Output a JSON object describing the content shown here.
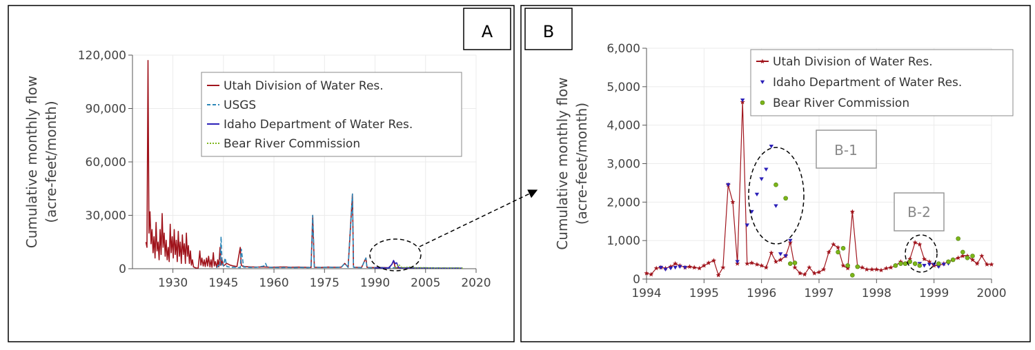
{
  "panels": {
    "a": {
      "label": "A"
    },
    "b": {
      "label": "B"
    }
  },
  "annotations": {
    "b1": "B-1",
    "b2": "B-2"
  },
  "colors": {
    "utah": "#a0141c",
    "usgs": "#2a86b8",
    "idaho": "#2a1fb8",
    "brc": "#7cb518",
    "grid": "#ebebeb",
    "axis": "#555555"
  },
  "chart_data": [
    {
      "panel": "A",
      "type": "line",
      "ylabel": [
        "Cumulative monthly flow",
        "(acre-feet/month)"
      ],
      "xlabel": "",
      "xlim": [
        1918,
        2020
      ],
      "ylim": [
        0,
        120000
      ],
      "xticks": [
        1930,
        1945,
        1960,
        1975,
        1990,
        2005,
        2020
      ],
      "xticklabels": [
        "1930",
        "1945",
        "1960",
        "1975",
        "1990",
        "2005",
        "2020"
      ],
      "yticks": [
        0,
        30000,
        60000,
        90000,
        120000
      ],
      "yticklabels": [
        "0",
        "30,000",
        "60,000",
        "90,000",
        "120,000"
      ],
      "grid": true,
      "legend": "top-right",
      "series": [
        {
          "name": "Utah Division of Water Res.",
          "key": "utah",
          "style": "solid",
          "x": [
            1922.0,
            1922.3,
            1922.6,
            1922.9,
            1923.2,
            1923.5,
            1923.8,
            1924.1,
            1924.4,
            1924.7,
            1925.0,
            1925.3,
            1925.6,
            1925.9,
            1926.2,
            1926.5,
            1926.8,
            1927.1,
            1927.4,
            1927.7,
            1928.0,
            1928.3,
            1928.6,
            1928.9,
            1929.2,
            1929.5,
            1929.8,
            1930.1,
            1930.4,
            1930.7,
            1931.0,
            1931.3,
            1931.6,
            1931.9,
            1932.2,
            1932.5,
            1932.8,
            1933.1,
            1933.4,
            1933.7,
            1934.0,
            1934.3,
            1934.6,
            1934.9,
            1935.2,
            1935.5,
            1935.8,
            1936.1,
            1936.4,
            1936.7,
            1937.0,
            1937.5,
            1938.0,
            1938.3,
            1938.6,
            1939.0,
            1939.3,
            1939.6,
            1940.0,
            1940.3,
            1940.6,
            1941.0,
            1941.3,
            1941.6,
            1942.0,
            1942.3,
            1942.6,
            1943.0,
            1943.3,
            1943.6,
            1944.0,
            1944.3,
            1944.6,
            1945.0,
            1946.0,
            1947.0,
            1948.0,
            1949.0,
            1950.0,
            1950.3,
            1950.6,
            1951.0,
            1953.0,
            1955.0,
            1957.0,
            1959.0,
            1961.0,
            1963.0,
            1965.0,
            1967.0,
            1969.0,
            1971.0,
            1971.5,
            1972.0,
            1974.0,
            1976.0,
            1978.0,
            1980.0,
            1981.0,
            1982.0,
            1983.3,
            1983.6,
            1984.0,
            1986.0,
            1987.3,
            1987.6,
            1988.0,
            1990.0,
            1992.0,
            1994.0,
            1995.0,
            1995.5,
            1996.0,
            1997.0,
            1998.0,
            1999.0,
            2000.0
          ],
          "y": [
            15000,
            12000,
            117000,
            20000,
            32000,
            14000,
            22000,
            9000,
            18000,
            6000,
            26000,
            10000,
            15000,
            5000,
            22000,
            8000,
            31000,
            12000,
            20000,
            7000,
            16000,
            5000,
            12000,
            4000,
            25000,
            9000,
            18000,
            6000,
            22000,
            8000,
            16000,
            4000,
            21000,
            7000,
            15000,
            3000,
            19000,
            8000,
            14000,
            3000,
            20000,
            7000,
            13000,
            3000,
            10000,
            2000,
            5000,
            1000,
            800,
            500,
            400,
            300,
            10000,
            2000,
            6000,
            1500,
            5000,
            1200,
            6000,
            1500,
            7000,
            1000,
            5000,
            800,
            9000,
            1500,
            4000,
            700,
            5000,
            1000,
            12000,
            2000,
            5000,
            1500,
            3000,
            2000,
            1500,
            1200,
            12000,
            2000,
            1500,
            1200,
            1000,
            900,
            1000,
            800,
            900,
            1000,
            800,
            900,
            800,
            700,
            30000,
            800,
            700,
            900,
            800,
            900,
            3000,
            800,
            42000,
            900,
            800,
            700,
            6000,
            800,
            700,
            600,
            700,
            500,
            2400,
            4600,
            500,
            600,
            500,
            500,
            400
          ]
        },
        {
          "name": "USGS",
          "key": "usgs",
          "style": "dash",
          "x": [
            1943.0,
            1943.5,
            1944.0,
            1944.3,
            1944.6,
            1945.0,
            1945.5,
            1946.0,
            1947.0,
            1948.0,
            1949.0,
            1950.0,
            1950.3,
            1951.0,
            1953.0,
            1955.0,
            1957.0,
            1957.5,
            1958.0,
            1960.0,
            1962.0,
            1964.0,
            1966.0,
            1968.0,
            1970.0,
            1971.0,
            1971.5,
            1972.0,
            1974.0,
            1976.0,
            1978.0,
            1980.0,
            1981.0,
            1982.0,
            1983.3,
            1983.6,
            1984.0,
            1986.0,
            1987.3,
            1987.6,
            1988.0,
            1990.0,
            1992.0,
            1994.0,
            1996.0,
            1998.0,
            2000.0,
            2005.0,
            2010.0,
            2016.0
          ],
          "y": [
            500,
            2000,
            1200,
            18000,
            3000,
            1500,
            6000,
            1200,
            900,
            800,
            700,
            600,
            11000,
            900,
            700,
            800,
            1500,
            3000,
            800,
            700,
            600,
            700,
            600,
            700,
            600,
            700,
            30000,
            800,
            700,
            800,
            700,
            800,
            3000,
            700,
            42000,
            800,
            700,
            600,
            6000,
            700,
            600,
            500,
            600,
            500,
            600,
            500,
            500,
            500,
            400,
            400
          ]
        },
        {
          "name": "Idaho Department of Water Res.",
          "key": "idaho",
          "style": "solid",
          "x": [
            1990.0,
            1992.0,
            1994.0,
            1995.0,
            1995.5,
            1996.0,
            1996.4,
            1997.0,
            1998.0,
            1999.0,
            2000.0,
            2005.0,
            2010.0,
            2016.0
          ],
          "y": [
            500,
            400,
            300,
            2400,
            4600,
            2800,
            3400,
            600,
            400,
            400,
            500,
            400,
            300,
            300
          ]
        },
        {
          "name": "Bear River Commission",
          "key": "brc",
          "style": "dot",
          "x": [
            1996.0,
            1997.0,
            1998.0,
            1999.0,
            2000.0,
            2002.0,
            2004.0,
            2006.0,
            2008.0,
            2010.0,
            2012.0,
            2014.0,
            2016.0
          ],
          "y": [
            400,
            2400,
            600,
            700,
            1000,
            500,
            600,
            500,
            400,
            500,
            400,
            500,
            300
          ]
        }
      ]
    },
    {
      "panel": "B",
      "type": "scatter",
      "ylabel": [
        "Cumulative monthly flow",
        "(acre-feet/month)"
      ],
      "xlabel": "",
      "xlim": [
        1994,
        2000
      ],
      "ylim": [
        0,
        6000
      ],
      "xticks": [
        1994,
        1995,
        1996,
        1997,
        1998,
        1999,
        2000
      ],
      "xticklabels": [
        "1994",
        "1995",
        "1996",
        "1997",
        "1998",
        "1999",
        "2000"
      ],
      "yticks": [
        0,
        1000,
        2000,
        3000,
        4000,
        5000,
        6000
      ],
      "yticklabels": [
        "0",
        "1,000",
        "2,000",
        "3,000",
        "4,000",
        "5,000",
        "6,000"
      ],
      "grid": true,
      "legend": "top-right",
      "series": [
        {
          "name": "Utah Division of Water Res.",
          "key": "utah",
          "marker": "star",
          "line": true,
          "x": [
            1994.0,
            1994.08,
            1994.17,
            1994.25,
            1994.33,
            1994.42,
            1994.5,
            1994.58,
            1994.67,
            1994.75,
            1994.83,
            1994.92,
            1995.0,
            1995.08,
            1995.17,
            1995.25,
            1995.33,
            1995.42,
            1995.5,
            1995.58,
            1995.67,
            1995.75,
            1995.83,
            1995.92,
            1996.0,
            1996.08,
            1996.17,
            1996.25,
            1996.33,
            1996.42,
            1996.5,
            1996.58,
            1996.67,
            1996.75,
            1996.83,
            1996.92,
            1997.0,
            1997.08,
            1997.17,
            1997.25,
            1997.33,
            1997.42,
            1997.5,
            1997.58,
            1997.67,
            1997.75,
            1997.83,
            1997.92,
            1998.0,
            1998.08,
            1998.17,
            1998.25,
            1998.33,
            1998.42,
            1998.5,
            1998.58,
            1998.67,
            1998.75,
            1998.83,
            1998.92,
            1999.0,
            1999.08,
            1999.17,
            1999.25,
            1999.33,
            1999.42,
            1999.5,
            1999.58,
            1999.67,
            1999.75,
            1999.83,
            1999.92,
            2000.0
          ],
          "y": [
            150,
            120,
            280,
            300,
            280,
            320,
            400,
            350,
            300,
            320,
            300,
            280,
            350,
            420,
            480,
            100,
            300,
            2450,
            2000,
            400,
            4600,
            400,
            420,
            380,
            350,
            300,
            680,
            450,
            500,
            600,
            950,
            300,
            150,
            120,
            300,
            150,
            180,
            250,
            700,
            900,
            820,
            350,
            280,
            1750,
            320,
            300,
            250,
            250,
            250,
            230,
            280,
            300,
            350,
            450,
            400,
            520,
            950,
            900,
            520,
            450,
            350,
            350,
            400,
            450,
            500,
            550,
            600,
            600,
            500,
            400,
            600,
            380,
            380
          ]
        },
        {
          "name": "Idaho Department of Water Res.",
          "key": "idaho",
          "marker": "triangle-down",
          "line": false,
          "x": [
            1994.25,
            1994.33,
            1994.42,
            1994.5,
            1994.58,
            1994.67,
            1995.42,
            1995.58,
            1995.67,
            1995.75,
            1995.83,
            1995.92,
            1996.0,
            1996.08,
            1996.17,
            1996.25,
            1996.33,
            1996.42,
            1996.5,
            1998.58,
            1998.67,
            1998.75,
            1998.83,
            1998.92,
            1999.0,
            1999.08,
            1999.17,
            1999.25
          ],
          "y": [
            300,
            250,
            280,
            300,
            320,
            300,
            2450,
            450,
            4650,
            1400,
            1750,
            2200,
            2600,
            2850,
            3450,
            1900,
            650,
            600,
            1000,
            450,
            380,
            400,
            350,
            380,
            380,
            320,
            380,
            400
          ]
        },
        {
          "name": "Bear River Commission",
          "key": "brc",
          "marker": "circle",
          "line": false,
          "x": [
            1996.25,
            1996.42,
            1996.5,
            1996.58,
            1997.33,
            1997.42,
            1997.5,
            1997.58,
            1997.67,
            1998.33,
            1998.42,
            1998.5,
            1998.58,
            1998.67,
            1998.75,
            1999.08,
            1999.25,
            1999.33,
            1999.42,
            1999.5,
            1999.58,
            1999.67
          ],
          "y": [
            2450,
            2100,
            400,
            420,
            700,
            800,
            350,
            100,
            320,
            350,
            400,
            400,
            450,
            400,
            350,
            400,
            450,
            500,
            1050,
            700,
            550,
            600
          ]
        }
      ]
    }
  ]
}
